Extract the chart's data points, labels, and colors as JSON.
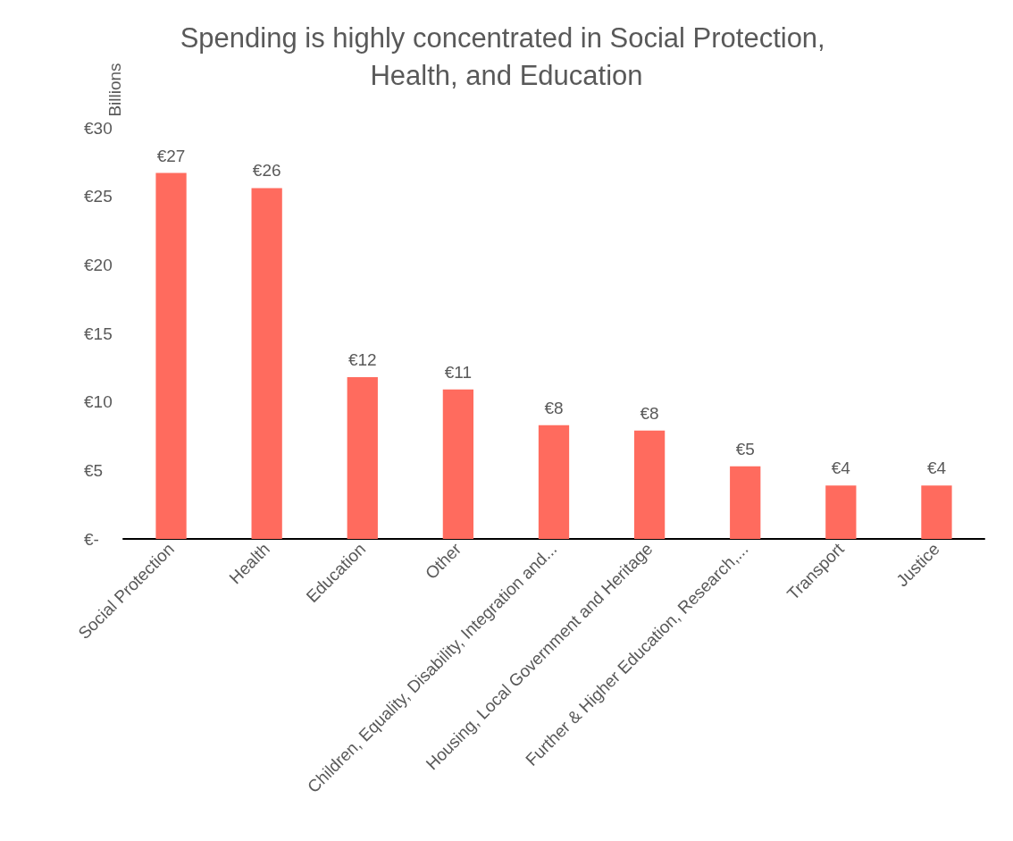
{
  "chart_data": {
    "type": "bar",
    "title": "Spending is highly concentrated in Social Protection, Health, and Education",
    "ylabel": "Billions",
    "categories": [
      "Social Protection",
      "Health",
      "Education",
      "Other",
      "Children, Equality, Disability, Integration and...",
      "Housing, Local Government and Heritage",
      "Further & Higher Education, Research,...",
      "Transport",
      "Justice"
    ],
    "values": [
      26.7,
      25.6,
      11.8,
      10.9,
      8.3,
      7.9,
      5.3,
      3.9,
      3.9
    ],
    "value_labels": [
      "€27",
      "€26",
      "€12",
      "€11",
      "€8",
      "€8",
      "€5",
      "€4",
      "€4"
    ],
    "color": "#ff6b5e",
    "ylim": [
      0,
      30
    ],
    "yticks": [
      {
        "value": 0,
        "label": "€-"
      },
      {
        "value": 5,
        "label": "€5"
      },
      {
        "value": 10,
        "label": "€10"
      },
      {
        "value": 15,
        "label": "€15"
      },
      {
        "value": 20,
        "label": "€20"
      },
      {
        "value": 25,
        "label": "€25"
      },
      {
        "value": 30,
        "label": "€30"
      }
    ],
    "grid": false
  }
}
